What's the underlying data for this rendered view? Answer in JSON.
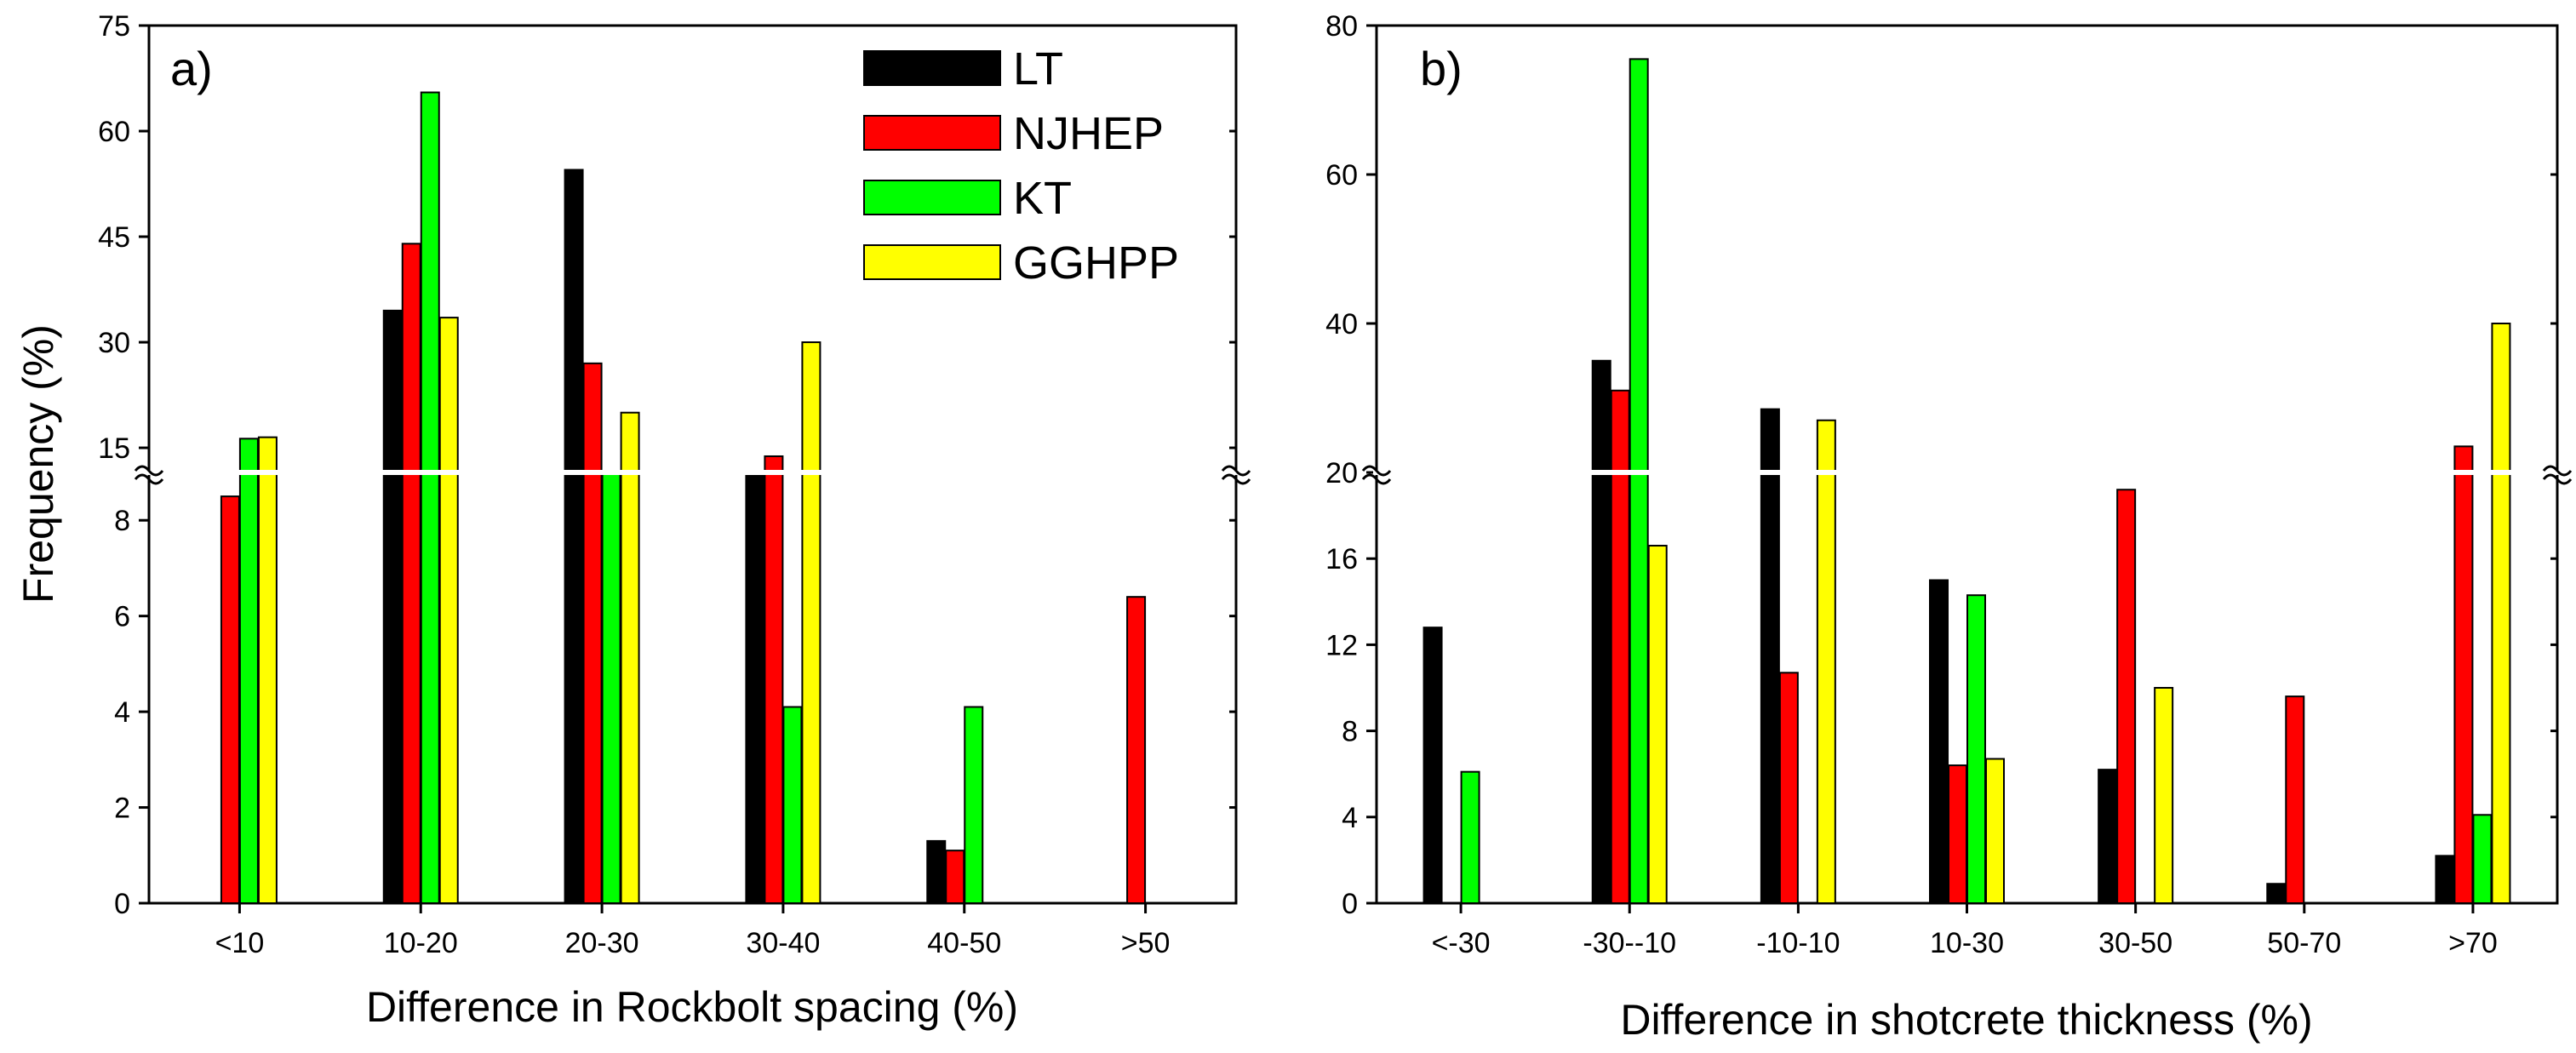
{
  "colors": {
    "LT": "#000000",
    "NJHEP": "#ff0000",
    "KT": "#00ff00",
    "GGHPP": "#ffff00"
  },
  "legend": [
    {
      "name": "LT",
      "color": "#000000"
    },
    {
      "name": "NJHEP",
      "color": "#ff0000"
    },
    {
      "name": "KT",
      "color": "#00ff00"
    },
    {
      "name": "GGHPP",
      "color": "#ffff00"
    }
  ],
  "chart_data": [
    {
      "type": "bar",
      "panel_label": "a)",
      "xlabel": "Difference in Rockbolt spacing (%)",
      "ylabel": "Frequency (%)",
      "categories": [
        "<10",
        "10-20",
        "20-30",
        "30-40",
        "40-50",
        ">50"
      ],
      "y_axis": "broken",
      "lower_ticks": [
        0,
        2,
        4,
        6,
        8
      ],
      "upper_ticks": [
        15,
        30,
        45,
        60,
        75
      ],
      "series": [
        {
          "name": "LT",
          "values": [
            null,
            34.5,
            54.5,
            11,
            1.3,
            null
          ]
        },
        {
          "name": "NJHEP",
          "values": [
            8.5,
            44,
            27,
            13.8,
            1.1,
            6.4
          ]
        },
        {
          "name": "KT",
          "values": [
            16.3,
            65.5,
            11,
            4.1,
            4.1,
            null
          ]
        },
        {
          "name": "GGHPP",
          "values": [
            16.5,
            33.5,
            20,
            30,
            null,
            null
          ]
        }
      ]
    },
    {
      "type": "bar",
      "panel_label": "b)",
      "xlabel": "Difference in shotcrete thickness (%)",
      "ylabel": "",
      "categories": [
        "<-30",
        "-30--10",
        "-10-10",
        "10-30",
        "30-50",
        "50-70",
        ">70"
      ],
      "y_axis": "broken",
      "lower_ticks": [
        0,
        4,
        8,
        12,
        16,
        20
      ],
      "upper_ticks": [
        40,
        60,
        80
      ],
      "series": [
        {
          "name": "LT",
          "values": [
            12.8,
            35,
            28.5,
            15,
            6.2,
            0.9,
            2.2
          ]
        },
        {
          "name": "NJHEP",
          "values": [
            null,
            31,
            10.7,
            6.4,
            19.2,
            9.6,
            23.5
          ]
        },
        {
          "name": "KT",
          "values": [
            6.1,
            75.5,
            null,
            14.3,
            null,
            null,
            4.1
          ]
        },
        {
          "name": "GGHPP",
          "values": [
            null,
            16.6,
            27,
            6.7,
            10,
            null,
            40
          ]
        }
      ]
    }
  ]
}
